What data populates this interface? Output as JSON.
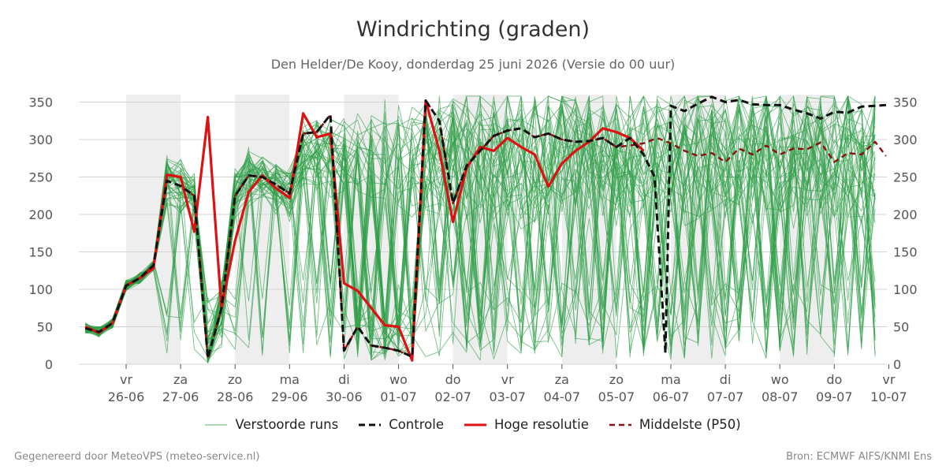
{
  "chart_data": {
    "type": "line",
    "title": "Windrichting (graden)",
    "subtitle": "Den Helder/De Kooy, donderdag 25 juni 2026 (Versie do 00 uur)",
    "ylim": [
      0,
      360
    ],
    "yticks": [
      0,
      50,
      100,
      150,
      200,
      250,
      300,
      350
    ],
    "xlim": [
      -1.2,
      13.95
    ],
    "day_ticks": [
      {
        "x": 0,
        "day": "vr",
        "date": "26-06"
      },
      {
        "x": 1,
        "day": "za",
        "date": "27-06"
      },
      {
        "x": 2,
        "day": "zo",
        "date": "28-06"
      },
      {
        "x": 3,
        "day": "ma",
        "date": "29-06"
      },
      {
        "x": 4,
        "day": "di",
        "date": "30-06"
      },
      {
        "x": 5,
        "day": "wo",
        "date": "01-07"
      },
      {
        "x": 6,
        "day": "do",
        "date": "02-07"
      },
      {
        "x": 7,
        "day": "vr",
        "date": "03-07"
      },
      {
        "x": 8,
        "day": "za",
        "date": "04-07"
      },
      {
        "x": 9,
        "day": "zo",
        "date": "05-07"
      },
      {
        "x": 10,
        "day": "ma",
        "date": "06-07"
      },
      {
        "x": 11,
        "day": "di",
        "date": "07-07"
      },
      {
        "x": 12,
        "day": "wo",
        "date": "08-07"
      },
      {
        "x": 13,
        "day": "do",
        "date": "09-07"
      },
      {
        "x": 14,
        "day": "vr",
        "date": "10-07"
      }
    ],
    "grid": true,
    "legend_position": "bottom-center",
    "shaded_days": [
      [
        0,
        1
      ],
      [
        2,
        3
      ],
      [
        4,
        5
      ],
      [
        6,
        7
      ],
      [
        8,
        9
      ],
      [
        10,
        11
      ],
      [
        12,
        13
      ]
    ],
    "series": [
      {
        "name": "Controle",
        "style": "dashed",
        "color": "#111111",
        "points": [
          [
            -0.75,
            48
          ],
          [
            -0.5,
            43
          ],
          [
            -0.25,
            55
          ],
          [
            0,
            105
          ],
          [
            0.25,
            115
          ],
          [
            0.5,
            132
          ],
          [
            0.75,
            245
          ],
          [
            1,
            238
          ],
          [
            1.25,
            225
          ],
          [
            1.5,
            8
          ],
          [
            1.75,
            75
          ],
          [
            2,
            225
          ],
          [
            2.25,
            252
          ],
          [
            2.5,
            250
          ],
          [
            2.75,
            240
          ],
          [
            3,
            228
          ],
          [
            3.25,
            308
          ],
          [
            3.5,
            310
          ],
          [
            3.75,
            333
          ],
          [
            4,
            18
          ],
          [
            4.25,
            50
          ],
          [
            4.5,
            25
          ],
          [
            4.75,
            22
          ],
          [
            5,
            18
          ],
          [
            5.25,
            10
          ],
          [
            5.5,
            352
          ],
          [
            5.75,
            325
          ],
          [
            6,
            215
          ],
          [
            6.25,
            265
          ],
          [
            6.5,
            285
          ],
          [
            6.75,
            305
          ],
          [
            7,
            312
          ],
          [
            7.25,
            315
          ],
          [
            7.5,
            303
          ],
          [
            7.75,
            308
          ],
          [
            8,
            300
          ],
          [
            8.25,
            297
          ],
          [
            8.5,
            298
          ],
          [
            8.75,
            302
          ],
          [
            9,
            290
          ],
          [
            9.25,
            302
          ],
          [
            9.5,
            280
          ],
          [
            9.7,
            250
          ],
          [
            9.9,
            15
          ],
          [
            10,
            345
          ],
          [
            10.25,
            338
          ],
          [
            10.5,
            348
          ],
          [
            10.75,
            357
          ],
          [
            11,
            350
          ],
          [
            11.25,
            353
          ],
          [
            11.5,
            347
          ],
          [
            11.75,
            346
          ],
          [
            12,
            346
          ],
          [
            12.25,
            340
          ],
          [
            12.5,
            335
          ],
          [
            12.75,
            328
          ],
          [
            13,
            337
          ],
          [
            13.25,
            336
          ],
          [
            13.5,
            344
          ],
          [
            13.75,
            345
          ],
          [
            13.95,
            346
          ]
        ]
      },
      {
        "name": "Hoge resolutie",
        "style": "solid",
        "color": "#dd1111",
        "points": [
          [
            -0.75,
            50
          ],
          [
            -0.5,
            42
          ],
          [
            -0.25,
            55
          ],
          [
            0,
            105
          ],
          [
            0.25,
            115
          ],
          [
            0.5,
            128
          ],
          [
            0.75,
            253
          ],
          [
            1,
            250
          ],
          [
            1.25,
            177
          ],
          [
            1.5,
            330
          ],
          [
            1.75,
            75
          ],
          [
            2,
            165
          ],
          [
            2.25,
            230
          ],
          [
            2.5,
            252
          ],
          [
            2.75,
            235
          ],
          [
            3,
            222
          ],
          [
            3.25,
            335
          ],
          [
            3.5,
            303
          ],
          [
            3.75,
            308
          ],
          [
            4,
            108
          ],
          [
            4.25,
            98
          ],
          [
            4.5,
            75
          ],
          [
            4.75,
            52
          ],
          [
            5,
            50
          ],
          [
            5.25,
            5
          ],
          [
            5.5,
            352
          ],
          [
            5.75,
            285
          ],
          [
            6,
            190
          ],
          [
            6.25,
            262
          ],
          [
            6.5,
            290
          ],
          [
            6.75,
            285
          ],
          [
            7,
            302
          ],
          [
            7.25,
            290
          ],
          [
            7.5,
            280
          ],
          [
            7.75,
            237
          ],
          [
            8,
            268
          ],
          [
            8.25,
            285
          ],
          [
            8.5,
            297
          ],
          [
            8.75,
            315
          ],
          [
            9,
            310
          ],
          [
            9.25,
            302
          ],
          [
            9.5,
            285
          ]
        ]
      },
      {
        "name": "Middelste (P50)",
        "style": "dashed",
        "color": "#8b1010",
        "points": [
          [
            -0.75,
            48
          ],
          [
            -0.5,
            43
          ],
          [
            -0.25,
            55
          ],
          [
            0,
            105
          ],
          [
            0.25,
            115
          ],
          [
            0.5,
            132
          ],
          [
            0.75,
            245
          ],
          [
            1,
            238
          ],
          [
            1.25,
            225
          ],
          [
            1.5,
            8
          ],
          [
            1.75,
            75
          ],
          [
            2,
            225
          ],
          [
            2.25,
            252
          ],
          [
            2.5,
            250
          ],
          [
            2.75,
            240
          ],
          [
            3,
            228
          ],
          [
            3.25,
            308
          ],
          [
            3.5,
            310
          ],
          [
            3.75,
            333
          ],
          [
            4,
            18
          ],
          [
            4.25,
            50
          ],
          [
            4.5,
            25
          ],
          [
            4.75,
            22
          ],
          [
            5,
            18
          ],
          [
            5.25,
            10
          ],
          [
            5.5,
            352
          ],
          [
            5.75,
            325
          ],
          [
            6,
            215
          ],
          [
            6.25,
            265
          ],
          [
            6.5,
            285
          ],
          [
            6.75,
            305
          ],
          [
            7,
            312
          ],
          [
            7.25,
            315
          ],
          [
            7.5,
            303
          ],
          [
            7.75,
            308
          ],
          [
            8,
            300
          ],
          [
            8.25,
            297
          ],
          [
            8.5,
            298
          ],
          [
            8.75,
            302
          ],
          [
            9,
            290
          ],
          [
            9.25,
            292
          ],
          [
            9.5,
            295
          ],
          [
            9.75,
            302
          ],
          [
            10,
            295
          ],
          [
            10.25,
            285
          ],
          [
            10.5,
            278
          ],
          [
            10.75,
            282
          ],
          [
            11,
            270
          ],
          [
            11.25,
            288
          ],
          [
            11.5,
            280
          ],
          [
            11.75,
            292
          ],
          [
            12,
            280
          ],
          [
            12.25,
            288
          ],
          [
            12.5,
            287
          ],
          [
            12.75,
            296
          ],
          [
            13,
            270
          ],
          [
            13.25,
            282
          ],
          [
            13.5,
            280
          ],
          [
            13.75,
            297
          ],
          [
            13.95,
            278
          ]
        ]
      }
    ],
    "ensemble_name": "Verstoorde runs",
    "ensemble_color": "#2e9e46",
    "ensemble_members": 50
  },
  "legend": {
    "perturbed": "Verstoorde runs",
    "control": "Controle",
    "hires": "Hoge resolutie",
    "p50": "Middelste (P50)"
  },
  "footer": {
    "left": "Gegenereerd door MeteoVPS (meteo-service.nl)",
    "right": "Bron: ECMWF AIFS/KNMI Ens"
  }
}
